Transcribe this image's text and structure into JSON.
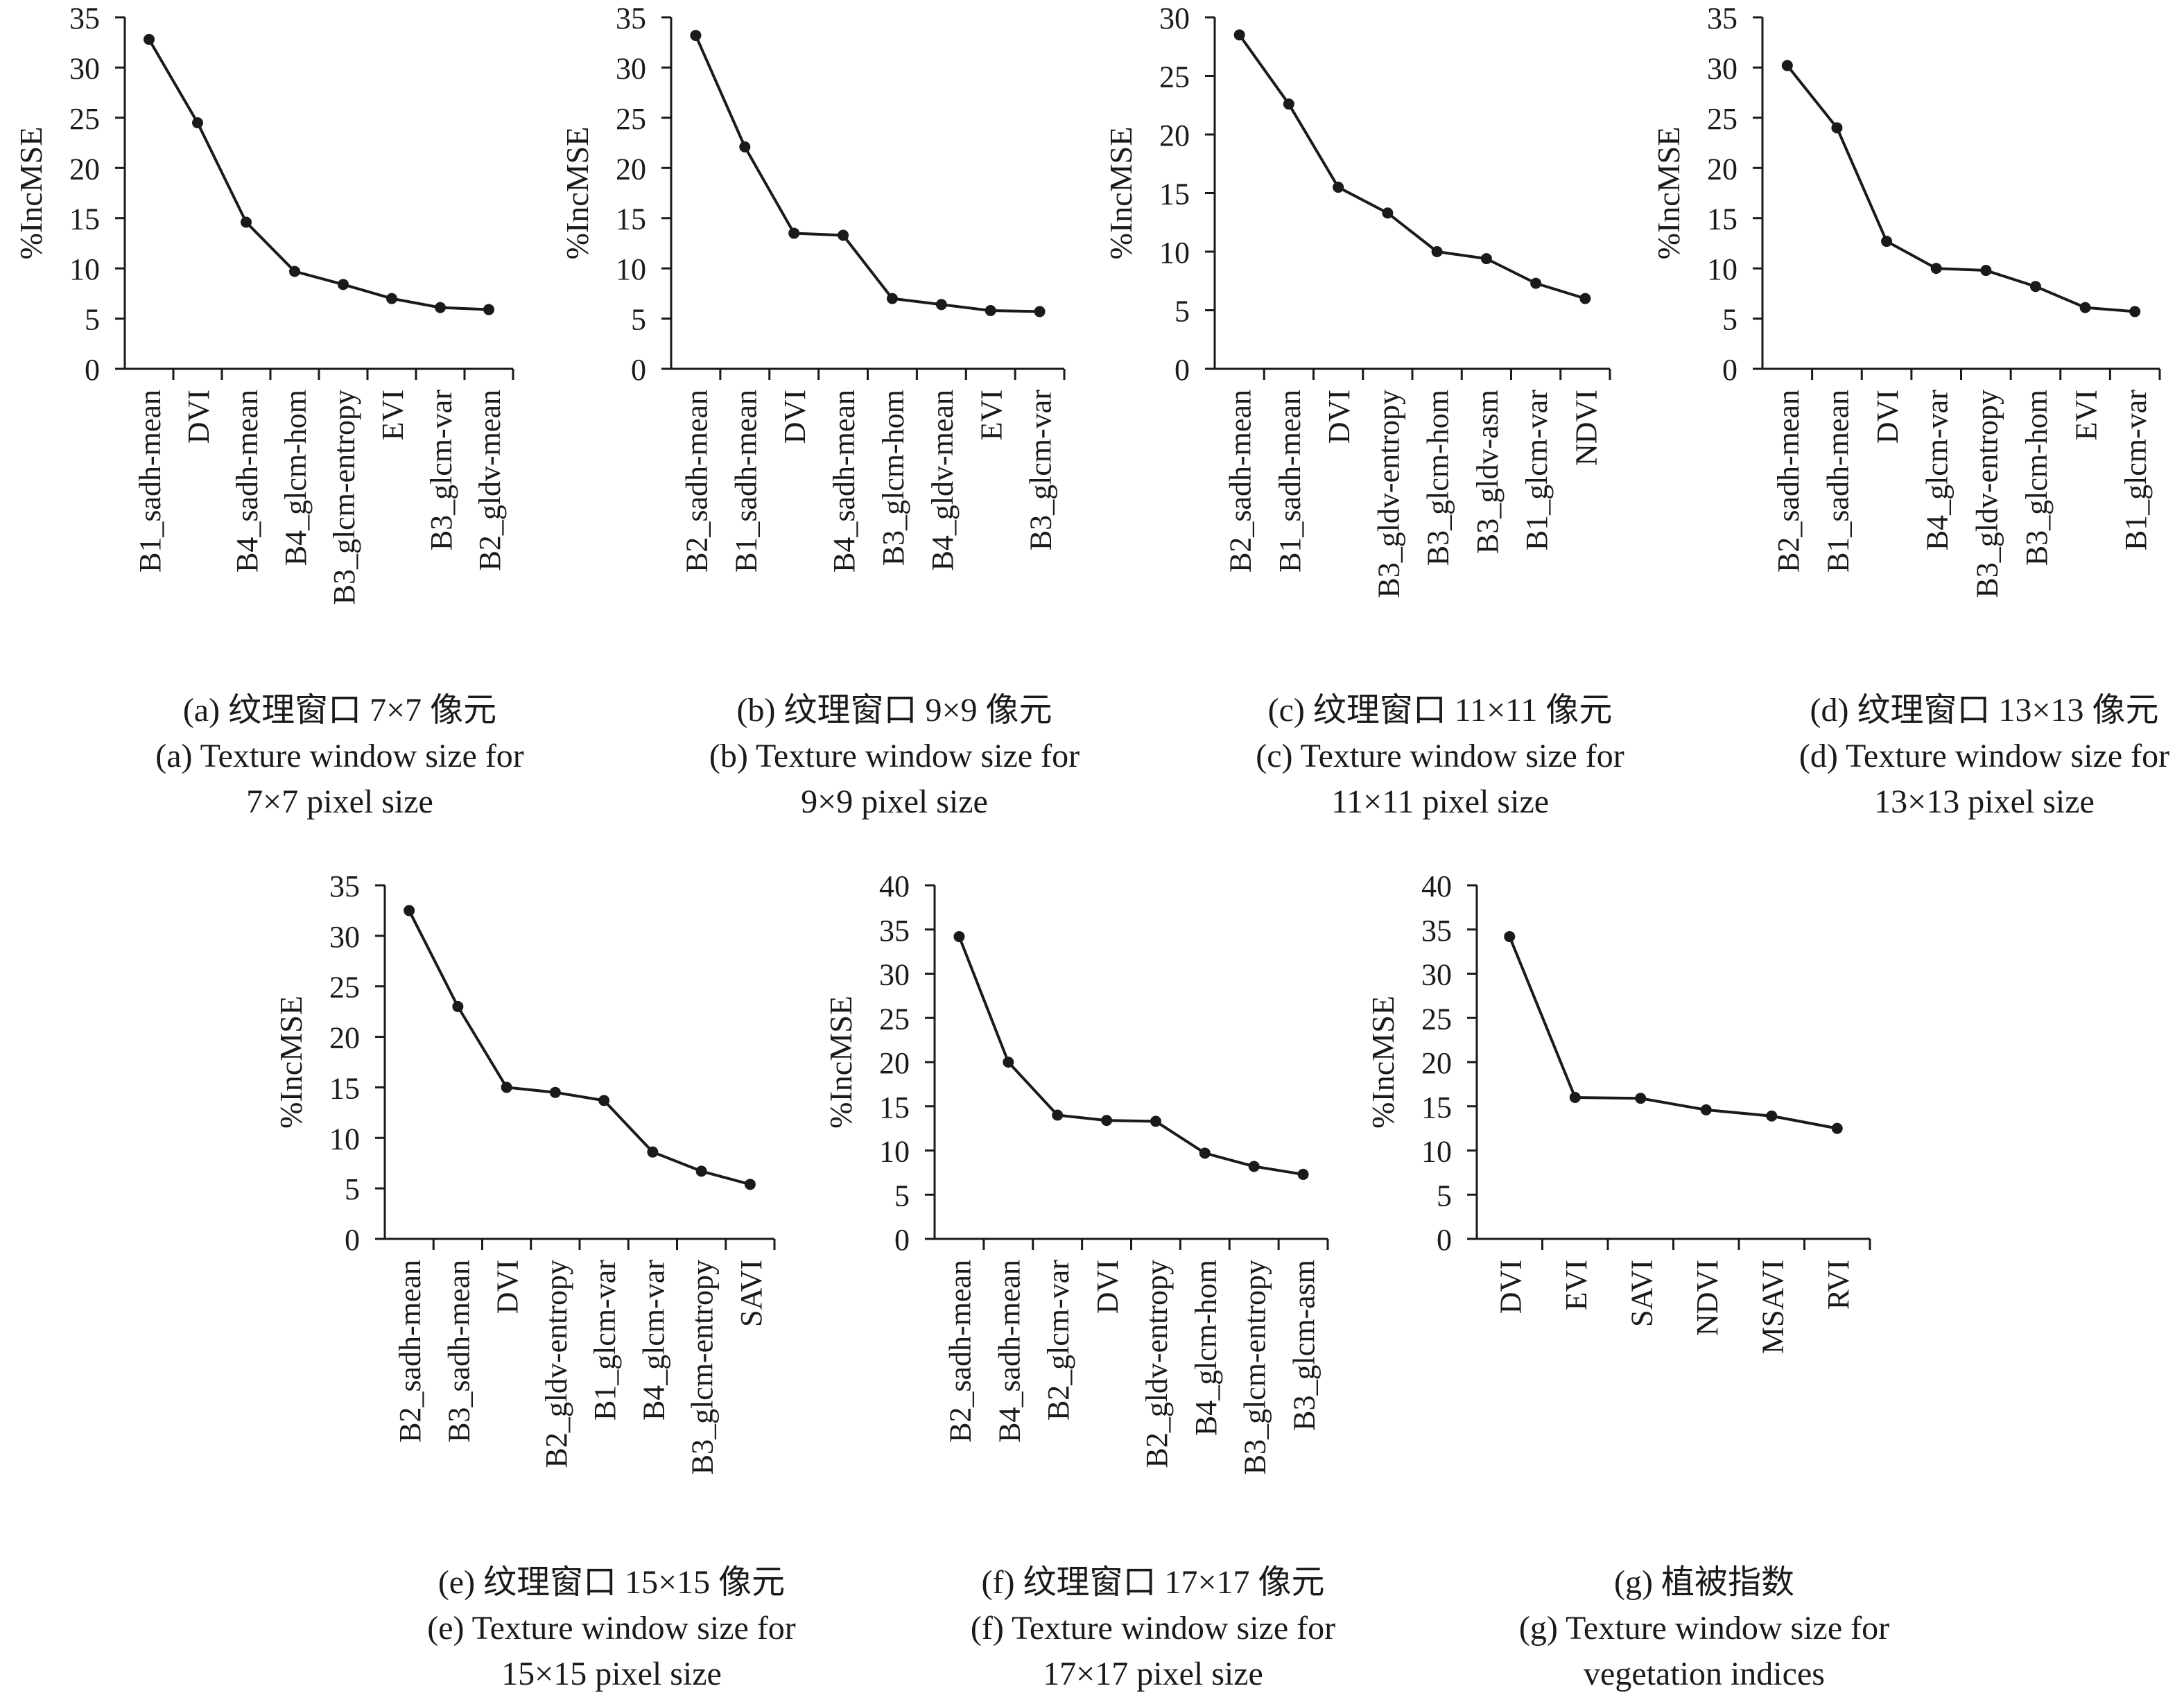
{
  "ylabel": "%IncMSE",
  "chart_data": [
    {
      "type": "line",
      "panel": "a",
      "categories": [
        "B1_sadh-mean",
        "DVI",
        "B4_sadh-mean",
        "B4_glcm-hom",
        "B3_glcm-entropy",
        "EVI",
        "B3_glcm-var",
        "B2_gldv-mean"
      ],
      "values": [
        32.8,
        24.5,
        14.6,
        9.7,
        8.4,
        7.0,
        6.1,
        5.9
      ],
      "ylim": [
        0,
        35
      ],
      "ystep": 5,
      "ylabel": "%IncMSE",
      "caption": [
        "(a) 纹理窗口 7×7 像元",
        "(a) Texture window size for",
        "7×7 pixel size"
      ]
    },
    {
      "type": "line",
      "panel": "b",
      "categories": [
        "B2_sadh-mean",
        "B1_sadh-mean",
        "DVI",
        "B4_sadh-mean",
        "B3_glcm-hom",
        "B4_gldv-mean",
        "EVI",
        "B3_glcm-var"
      ],
      "values": [
        33.2,
        22.1,
        13.5,
        13.3,
        7.0,
        6.4,
        5.8,
        5.7
      ],
      "ylim": [
        0,
        35
      ],
      "ystep": 5,
      "ylabel": "%IncMSE",
      "caption": [
        "(b) 纹理窗口 9×9 像元",
        "(b) Texture window size for",
        "9×9 pixel size"
      ]
    },
    {
      "type": "line",
      "panel": "c",
      "categories": [
        "B2_sadh-mean",
        "B1_sadh-mean",
        "DVI",
        "B3_gldv-entropy",
        "B3_glcm-hom",
        "B3_gldv-asm",
        "B1_glcm-var",
        "NDVI"
      ],
      "values": [
        28.5,
        22.6,
        15.5,
        13.3,
        10.0,
        9.4,
        7.3,
        6.0
      ],
      "ylim": [
        0,
        30
      ],
      "ystep": 5,
      "ylabel": "%IncMSE",
      "caption": [
        "(c) 纹理窗口 11×11 像元",
        "(c) Texture window size for",
        "11×11 pixel size"
      ]
    },
    {
      "type": "line",
      "panel": "d",
      "categories": [
        "B2_sadh-mean",
        "B1_sadh-mean",
        "DVI",
        "B4_glcm-var",
        "B3_gldv-entropy",
        "B3_glcm-hom",
        "EVI",
        "B1_glcm-var"
      ],
      "values": [
        30.2,
        24.0,
        12.7,
        10.0,
        9.8,
        8.2,
        6.1,
        5.7
      ],
      "ylim": [
        0,
        35
      ],
      "ystep": 5,
      "ylabel": "%IncMSE",
      "caption": [
        "(d) 纹理窗口 13×13 像元",
        "(d) Texture window size for",
        "13×13 pixel size"
      ]
    },
    {
      "type": "line",
      "panel": "e",
      "categories": [
        "B2_sadh-mean",
        "B3_sadh-mean",
        "DVI",
        "B2_gldv-entropy",
        "B1_glcm-var",
        "B4_glcm-var",
        "B3_glcm-entropy",
        "SAVI"
      ],
      "values": [
        32.5,
        23.0,
        15.0,
        14.5,
        13.7,
        8.6,
        6.7,
        5.4
      ],
      "ylim": [
        0,
        35
      ],
      "ystep": 5,
      "ylabel": "%IncMSE",
      "caption": [
        "(e) 纹理窗口 15×15 像元",
        "(e) Texture window size for",
        "15×15 pixel size"
      ]
    },
    {
      "type": "line",
      "panel": "f",
      "categories": [
        "B2_sadh-mean",
        "B4_sadh-mean",
        "B2_glcm-var",
        "DVI",
        "B2_gldv-entropy",
        "B4_glcm-hom",
        "B3_glcm-entropy",
        "B3_glcm-asm"
      ],
      "values": [
        34.2,
        20.0,
        14.0,
        13.4,
        13.3,
        9.7,
        8.2,
        7.3
      ],
      "ylim": [
        0,
        40
      ],
      "ystep": 5,
      "ylabel": "%IncMSE",
      "caption": [
        "(f) 纹理窗口 17×17 像元",
        "(f) Texture window size for",
        "17×17 pixel size"
      ]
    },
    {
      "type": "line",
      "panel": "g",
      "categories": [
        "DVI",
        "EVI",
        "SAVI",
        "NDVI",
        "MSAVI",
        "RVI"
      ],
      "values": [
        34.2,
        16.0,
        15.9,
        14.6,
        13.9,
        12.5
      ],
      "ylim": [
        0,
        40
      ],
      "ystep": 5,
      "ylabel": "%IncMSE",
      "caption": [
        "(g) 植被指数",
        "(g) Texture window size for",
        "vegetation indices"
      ]
    }
  ]
}
